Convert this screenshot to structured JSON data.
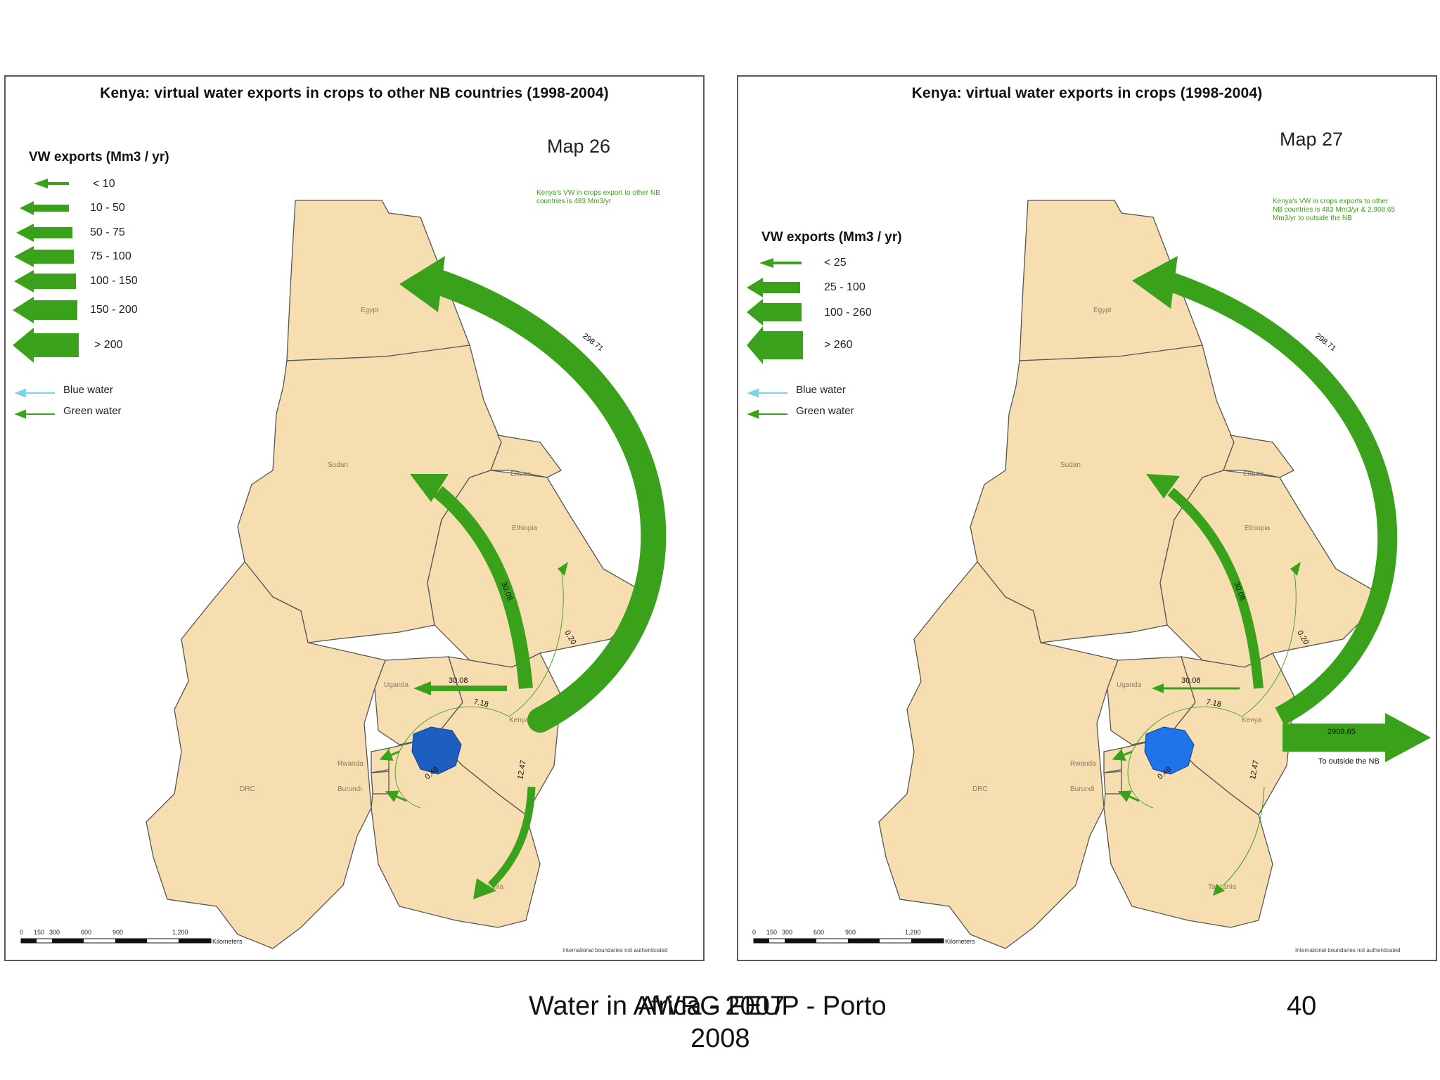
{
  "maps": [
    {
      "title": "Kenya: virtual water exports in crops to other NB countries (1998-2004)",
      "map_number": "Map 26",
      "note": "Kenya's VW in crops export to other NB countries is 483 Mm3/yr",
      "legend_title": "VW exports (Mm3 / yr)",
      "legend_classes": [
        "< 10",
        "10 - 50",
        "50 - 75",
        "75 - 100",
        "100 - 150",
        "150 - 200",
        "> 200"
      ],
      "water_types": [
        "Blue water",
        "Green water"
      ],
      "flows": [
        "298.71",
        "30.08",
        "7.18",
        "12.47",
        "0.48",
        "0.20"
      ],
      "outside_flow": null
    },
    {
      "title": "Kenya: virtual water exports in crops (1998-2004)",
      "map_number": "Map 27",
      "note": "Kenya's VW in crops exports to other NB countries is 483 Mm3/yr & 2,908.65 Mm3/yr to outside the NB",
      "legend_title": "VW exports (Mm3 / yr)",
      "legend_classes": [
        "< 25",
        "25 - 100",
        "100 - 260",
        "> 260"
      ],
      "water_types": [
        "Blue water",
        "Green water"
      ],
      "flows": [
        "298.71",
        "30.08",
        "7.18",
        "12.47",
        "0.48",
        "0.20"
      ],
      "outside_flow": {
        "value": "2908.65",
        "label": "To outside the NB"
      }
    }
  ],
  "countries": [
    "Egypt",
    "Sudan",
    "Eritrea",
    "Ethiopia",
    "Uganda",
    "Kenya",
    "Rwanda",
    "Burundi",
    "DRC",
    "Tanzania"
  ],
  "scale": {
    "ticks": [
      "0",
      "150",
      "300",
      "600",
      "900",
      "1,200"
    ],
    "unit": "Kilometers"
  },
  "disclaimer": "International boundaries not authenticated",
  "footer": {
    "left_line1": "Water in Africa - 2007",
    "overlay": "AWRG FEUP - Porto",
    "line2": "2008",
    "page_number": "40"
  },
  "colors": {
    "land": "#f7deb0",
    "border": "#555555",
    "green_water": "#3aa11a",
    "blue_water": "#7dd3e8",
    "lake": "#1d5fbf"
  }
}
